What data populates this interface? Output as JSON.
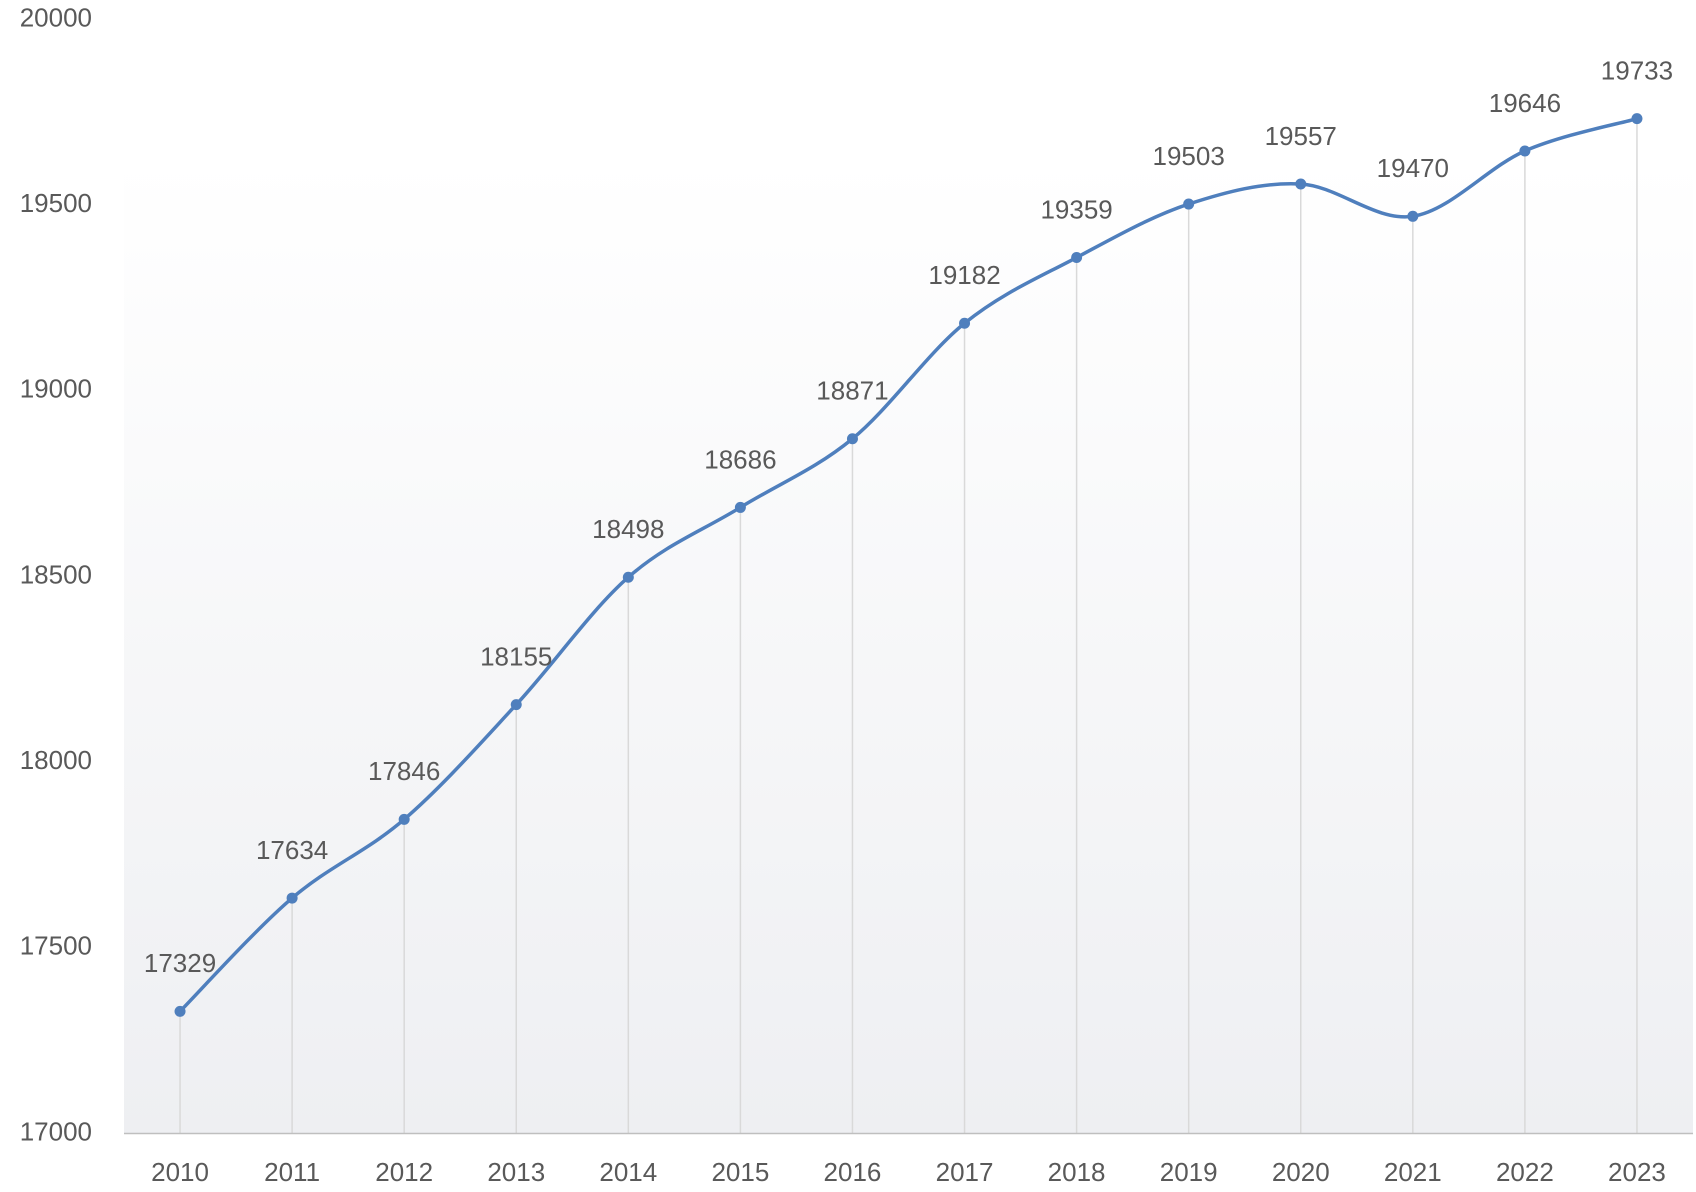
{
  "chart_data": {
    "type": "line",
    "categories": [
      "2010",
      "2011",
      "2012",
      "2013",
      "2014",
      "2015",
      "2016",
      "2017",
      "2018",
      "2019",
      "2020",
      "2021",
      "2022",
      "2023"
    ],
    "series": [
      {
        "color": "#4f7fbd",
        "values": [
          17329,
          17634,
          17846,
          18155,
          18498,
          18686,
          18871,
          19182,
          19359,
          19503,
          19557,
          19470,
          19646,
          19733
        ]
      }
    ],
    "ylim": [
      17000,
      20000
    ],
    "yticks": [
      17000,
      17500,
      18000,
      18500,
      19000,
      19500,
      20000
    ],
    "smooth": true,
    "data_labels": true,
    "drop_lines": true
  }
}
